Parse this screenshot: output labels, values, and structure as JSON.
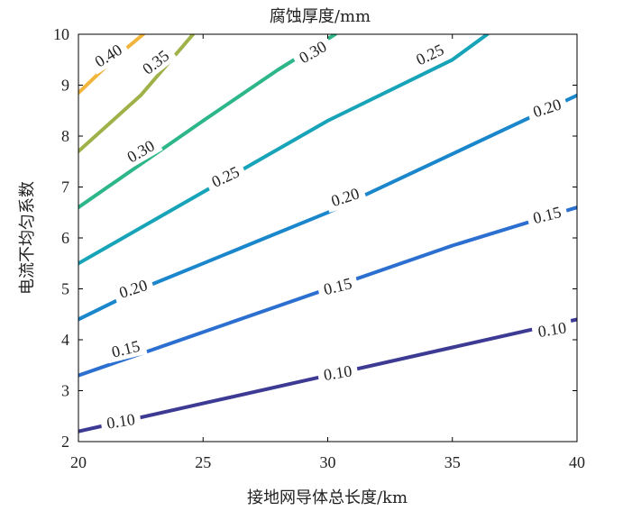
{
  "chart_data": {
    "type": "contour",
    "title": "腐蚀厚度/mm",
    "xlabel": "接地网导体总长度/km",
    "ylabel": "电流不均匀系数",
    "xlim": [
      20,
      40
    ],
    "ylim": [
      2,
      10
    ],
    "xticks": [
      20,
      25,
      30,
      35,
      40
    ],
    "yticks": [
      2,
      3,
      4,
      5,
      6,
      7,
      8,
      9,
      10
    ],
    "grid": false,
    "contours": [
      {
        "level": "0.10",
        "color": "#3d3a94",
        "points": [
          [
            20,
            2.2
          ],
          [
            25,
            2.75
          ],
          [
            30,
            3.3
          ],
          [
            35,
            3.85
          ],
          [
            40,
            4.4
          ]
        ],
        "labels": [
          [
            21.7,
            2.4,
            -9
          ],
          [
            30.4,
            3.35,
            -9
          ],
          [
            39,
            4.2,
            -9
          ]
        ]
      },
      {
        "level": "0.15",
        "color": "#2b6fd0",
        "points": [
          [
            20,
            3.3
          ],
          [
            25,
            4.15
          ],
          [
            30,
            5.0
          ],
          [
            35,
            5.85
          ],
          [
            40,
            6.6
          ]
        ],
        "labels": [
          [
            21.9,
            3.82,
            -14
          ],
          [
            30.4,
            5.05,
            -14
          ],
          [
            38.8,
            6.45,
            -14
          ]
        ]
      },
      {
        "level": "0.20",
        "color": "#1a86cc",
        "points": [
          [
            20,
            4.4
          ],
          [
            22.5,
            5.0
          ],
          [
            25,
            5.5
          ],
          [
            27.5,
            6.0
          ],
          [
            30,
            6.5
          ],
          [
            35,
            7.65
          ],
          [
            40,
            8.8
          ]
        ],
        "labels": [
          [
            22.2,
            5.0,
            -18
          ],
          [
            30.7,
            6.8,
            -18
          ],
          [
            38.8,
            8.55,
            -18
          ]
        ]
      },
      {
        "level": "0.25",
        "color": "#17a3b8",
        "points": [
          [
            20,
            5.5
          ],
          [
            25,
            6.9
          ],
          [
            30,
            8.3
          ],
          [
            35,
            9.5
          ],
          [
            36.4,
            10
          ]
        ],
        "labels": [
          [
            25.9,
            7.2,
            -25
          ],
          [
            34.1,
            9.6,
            -25
          ]
        ]
      },
      {
        "level": "0.30",
        "color": "#2db68a",
        "points": [
          [
            20,
            6.6
          ],
          [
            25,
            8.3
          ],
          [
            28,
            9.3
          ],
          [
            30.3,
            10
          ]
        ],
        "labels": [
          [
            22.5,
            7.7,
            -30
          ],
          [
            29.4,
            9.65,
            -30
          ]
        ]
      },
      {
        "level": "0.35",
        "color": "#9fb24a",
        "points": [
          [
            20,
            7.7
          ],
          [
            22.5,
            8.8
          ],
          [
            24.6,
            10
          ]
        ],
        "labels": [
          [
            23.1,
            9.45,
            -38
          ]
        ]
      },
      {
        "level": "0.40",
        "color": "#f2b43a",
        "points": [
          [
            20,
            8.85
          ],
          [
            21.5,
            9.55
          ],
          [
            22.6,
            10
          ]
        ],
        "labels": [
          [
            21.2,
            9.58,
            -32
          ]
        ]
      }
    ]
  }
}
